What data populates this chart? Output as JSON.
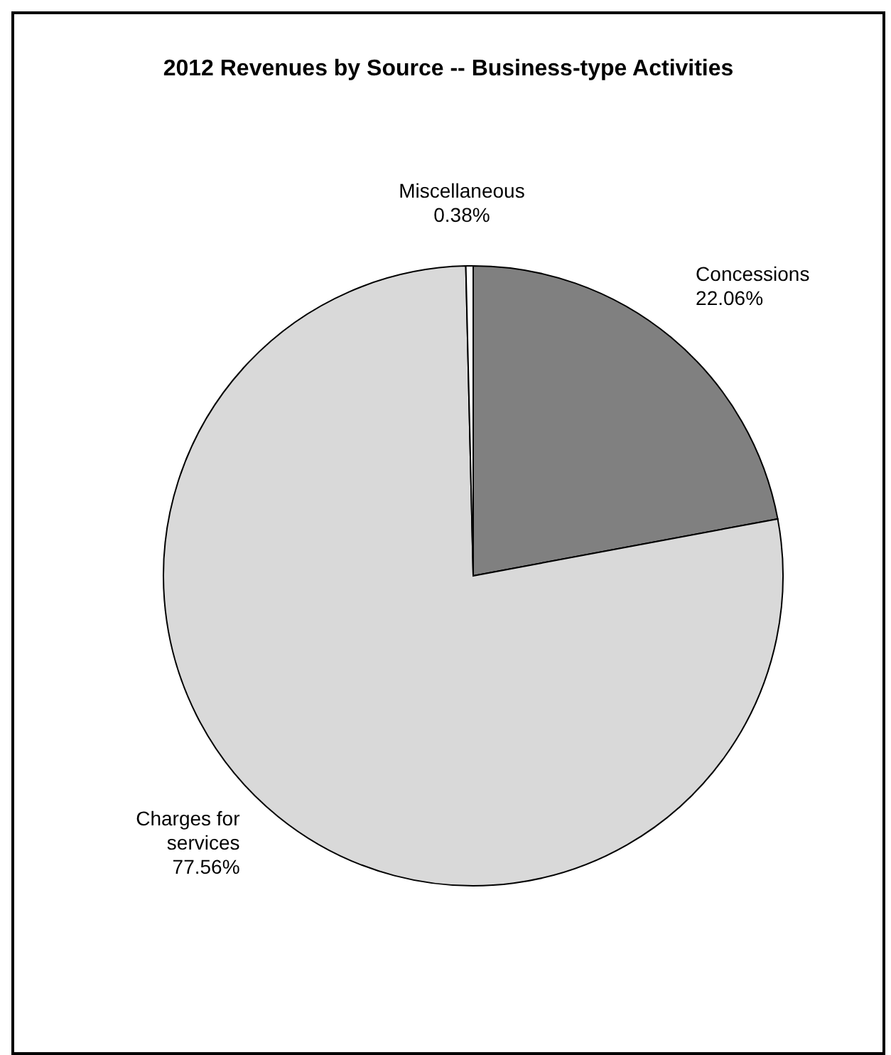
{
  "chart_data": {
    "type": "pie",
    "title": "2012 Revenues by Source -- Business-type  Activities",
    "categories": [
      "Concessions",
      "Charges for services",
      "Miscellaneous"
    ],
    "values": [
      22.06,
      77.56,
      0.38
    ],
    "value_labels": [
      "22.06%",
      "77.56%",
      "0.38%"
    ],
    "colors": [
      "#808080",
      "#d9d9d9",
      "#ffffff"
    ],
    "legend": false
  }
}
